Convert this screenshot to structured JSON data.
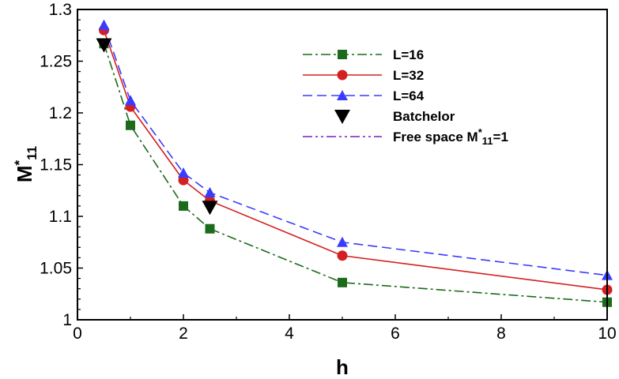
{
  "chart_data": {
    "type": "line",
    "xlabel": "h",
    "ylabel": {
      "main": "M",
      "sup": "*",
      "sub": "11"
    },
    "xlim": [
      0,
      10
    ],
    "ylim": [
      1,
      1.3
    ],
    "xticks": [
      "0",
      "2",
      "4",
      "6",
      "8",
      "10"
    ],
    "xtick_values": [
      0,
      2,
      4,
      6,
      8,
      10
    ],
    "yticks": [
      "1",
      "1.05",
      "1.1",
      "1.15",
      "1.2",
      "1.25",
      "1.3"
    ],
    "ytick_values": [
      1,
      1.05,
      1.1,
      1.15,
      1.2,
      1.25,
      1.3
    ],
    "grid": false,
    "legend_position": "top-right",
    "series": [
      {
        "name": "L=16",
        "color": "#1b6b1b",
        "line": "dash-dot",
        "marker": "square",
        "x": [
          0.5,
          1,
          2,
          2.5,
          5,
          10
        ],
        "y": [
          1.267,
          1.188,
          1.11,
          1.088,
          1.036,
          1.017
        ]
      },
      {
        "name": "L=32",
        "color": "#d42020",
        "line": "solid",
        "marker": "circle",
        "x": [
          0.5,
          1,
          2,
          2.5,
          5,
          10
        ],
        "y": [
          1.28,
          1.206,
          1.135,
          1.115,
          1.062,
          1.029
        ]
      },
      {
        "name": "L=64",
        "color": "#3b3bff",
        "line": "dashed",
        "marker": "triangle-up",
        "x": [
          0.5,
          1,
          2,
          2.5,
          5,
          10
        ],
        "y": [
          1.285,
          1.212,
          1.142,
          1.123,
          1.075,
          1.043
        ]
      },
      {
        "name": "Batchelor",
        "color": "#000000",
        "line": "none",
        "marker": "triangle-down",
        "x": [
          0.5,
          2.5
        ],
        "y": [
          1.266,
          1.109
        ]
      },
      {
        "name": "Free space M*₁₁=1",
        "legend": {
          "main": "Free space M",
          "sup": "*",
          "sub": "11",
          "tail": "=1"
        },
        "color": "#7a1fb8",
        "line": "dash-dot-dot",
        "marker": "none",
        "x": [
          0,
          10
        ],
        "y": [
          1,
          1
        ]
      }
    ]
  }
}
